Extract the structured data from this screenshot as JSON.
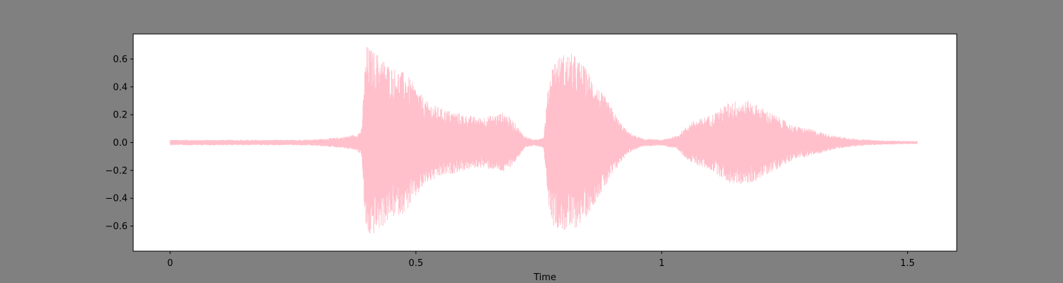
{
  "chart_data": {
    "type": "line",
    "title": "",
    "xlabel": "Time",
    "ylabel": "",
    "xlim": [
      -0.075,
      1.6
    ],
    "ylim": [
      -0.78,
      0.78
    ],
    "grid": false,
    "legend": "none",
    "x_ticks": [
      {
        "value": 0,
        "label": "0"
      },
      {
        "value": 0.5,
        "label": "0.5"
      },
      {
        "value": 1,
        "label": "1"
      },
      {
        "value": 1.5,
        "label": "1.5"
      }
    ],
    "y_ticks": [
      {
        "value": 0.6,
        "label": "0.6"
      },
      {
        "value": 0.4,
        "label": "0.4"
      },
      {
        "value": 0.2,
        "label": "0.2"
      },
      {
        "value": 0.0,
        "label": "0.0"
      },
      {
        "value": -0.2,
        "label": "−0.2"
      },
      {
        "value": -0.4,
        "label": "−0.4"
      },
      {
        "value": -0.6,
        "label": "−0.6"
      }
    ],
    "series": [
      {
        "color": "#ffc0cb",
        "x_start": 0.0,
        "x_end": 1.52,
        "amplitude_envelope": [
          [
            0.0,
            0.02
          ],
          [
            0.1,
            0.02
          ],
          [
            0.2,
            0.02
          ],
          [
            0.25,
            0.02
          ],
          [
            0.3,
            0.025
          ],
          [
            0.35,
            0.04
          ],
          [
            0.38,
            0.06
          ],
          [
            0.39,
            0.1
          ],
          [
            0.395,
            0.5
          ],
          [
            0.4,
            0.7
          ],
          [
            0.42,
            0.65
          ],
          [
            0.45,
            0.55
          ],
          [
            0.48,
            0.5
          ],
          [
            0.5,
            0.4
          ],
          [
            0.52,
            0.3
          ],
          [
            0.55,
            0.25
          ],
          [
            0.6,
            0.2
          ],
          [
            0.63,
            0.18
          ],
          [
            0.66,
            0.2
          ],
          [
            0.68,
            0.22
          ],
          [
            0.7,
            0.15
          ],
          [
            0.72,
            0.05
          ],
          [
            0.74,
            0.02
          ],
          [
            0.76,
            0.04
          ],
          [
            0.77,
            0.45
          ],
          [
            0.78,
            0.6
          ],
          [
            0.8,
            0.64
          ],
          [
            0.82,
            0.64
          ],
          [
            0.85,
            0.52
          ],
          [
            0.87,
            0.4
          ],
          [
            0.89,
            0.3
          ],
          [
            0.91,
            0.18
          ],
          [
            0.93,
            0.08
          ],
          [
            0.96,
            0.03
          ],
          [
            1.0,
            0.02
          ],
          [
            1.03,
            0.05
          ],
          [
            1.06,
            0.15
          ],
          [
            1.1,
            0.2
          ],
          [
            1.14,
            0.3
          ],
          [
            1.18,
            0.3
          ],
          [
            1.21,
            0.24
          ],
          [
            1.24,
            0.18
          ],
          [
            1.27,
            0.12
          ],
          [
            1.3,
            0.1
          ],
          [
            1.35,
            0.05
          ],
          [
            1.4,
            0.025
          ],
          [
            1.45,
            0.015
          ],
          [
            1.52,
            0.01
          ]
        ]
      }
    ]
  }
}
